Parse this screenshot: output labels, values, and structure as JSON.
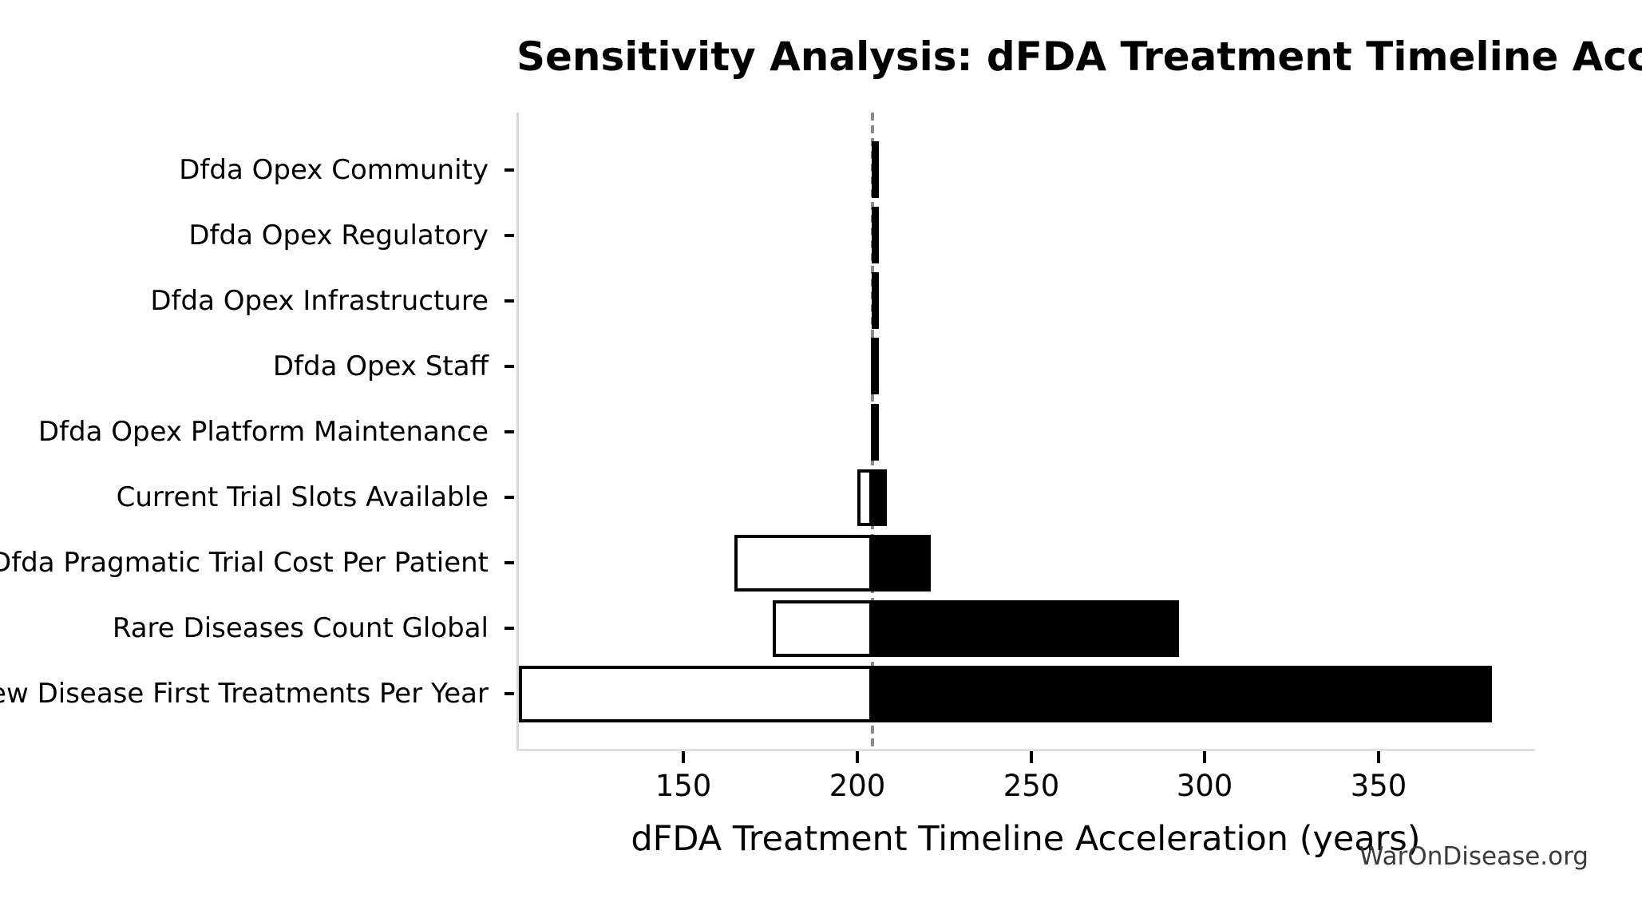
{
  "title": "Sensitivity Analysis: dFDA Treatment Timeline Acceleration",
  "watermark": "WarOnDisease.org",
  "chart_data": {
    "type": "bar",
    "subtype": "tornado-horizontal",
    "title": "Sensitivity Analysis: dFDA Treatment Timeline Acceleration",
    "xlabel": "dFDA Treatment Timeline Acceleration (years)",
    "ylabel": "",
    "baseline": 203.8,
    "xlim": [
      102,
      395
    ],
    "xticks": [
      150,
      200,
      250,
      300,
      350
    ],
    "grid": false,
    "legend": "none",
    "bar_meaning": {
      "low_bar": "white fill, black border (parameter at low value)",
      "high_bar": "solid black (parameter at high value)"
    },
    "rows": [
      {
        "label": "Dfda Opex Community",
        "low": 203.4,
        "high": 204.2
      },
      {
        "label": "Dfda Opex Regulatory",
        "low": 203.4,
        "high": 204.2
      },
      {
        "label": "Dfda Opex Infrastructure",
        "low": 203.4,
        "high": 204.2
      },
      {
        "label": "Dfda Opex Staff",
        "low": 203.3,
        "high": 204.3
      },
      {
        "label": "Dfda Opex Platform Maintenance",
        "low": 203.3,
        "high": 204.3
      },
      {
        "label": "Current Trial Slots Available",
        "low": 199.4,
        "high": 208.0
      },
      {
        "label": "Dfda Pragmatic Trial Cost Per Patient",
        "low": 164.0,
        "high": 220.5
      },
      {
        "label": "Rare Diseases Count Global",
        "low": 175.0,
        "high": 292.0
      },
      {
        "label": "New Disease First Treatments Per Year",
        "low": 102.0,
        "high": 382.0
      }
    ],
    "colors": {
      "bar_high_fill": "#000000",
      "bar_low_fill": "#ffffff",
      "bar_border": "#000000",
      "baseline_line": "#8a8a8a",
      "spine": "#dddddd",
      "tick": "#000000",
      "text": "#000000",
      "watermark_text": "#3a3a3a",
      "background": "#ffffff"
    }
  }
}
